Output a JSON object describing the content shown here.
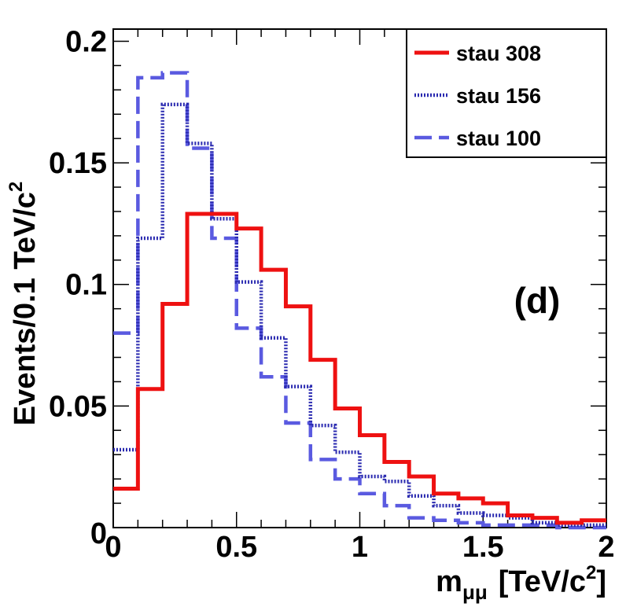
{
  "chart_data": {
    "type": "histogram-step",
    "panel_label": "(d)",
    "xlabel_main": "m",
    "xlabel_sub": "μμ",
    "xlabel_unit_prefix": "[TeV/c",
    "xlabel_unit_power": "2",
    "xlabel_unit_suffix": "]",
    "ylabel_main": "Events/0.1 TeV/c",
    "ylabel_power": "2",
    "xlim": [
      0,
      2
    ],
    "ylim": [
      0,
      0.205
    ],
    "x_ticks": [
      0,
      0.5,
      1,
      1.5,
      2
    ],
    "x_tick_labels": [
      "0",
      "0.5",
      "1",
      "1.5",
      "2"
    ],
    "y_ticks": [
      0,
      0.05,
      0.1,
      0.15,
      0.2
    ],
    "y_tick_labels": [
      "0",
      "0.05",
      "0.1",
      "0.15",
      "0.2"
    ],
    "bin_edges": [
      0,
      0.1,
      0.2,
      0.3,
      0.4,
      0.5,
      0.6,
      0.7,
      0.8,
      0.9,
      1.0,
      1.1,
      1.2,
      1.3,
      1.4,
      1.5,
      1.6,
      1.7,
      1.8,
      1.9,
      2.0
    ],
    "series": [
      {
        "name": "stau 308",
        "color": "#ee1111",
        "style": "solid",
        "values": [
          0.016,
          0.057,
          0.092,
          0.129,
          0.129,
          0.123,
          0.106,
          0.091,
          0.069,
          0.049,
          0.038,
          0.027,
          0.021,
          0.014,
          0.012,
          0.01,
          0.005,
          0.004,
          0.002,
          0.003
        ]
      },
      {
        "name": "stau 156",
        "color": "#2a2ab0",
        "style": "dotted",
        "values": [
          0.032,
          0.119,
          0.174,
          0.158,
          0.127,
          0.101,
          0.078,
          0.058,
          0.042,
          0.031,
          0.021,
          0.019,
          0.013,
          0.009,
          0.006,
          0.005,
          0.004,
          0.002,
          0.001,
          0.001
        ]
      },
      {
        "name": "stau 100",
        "color": "#5a5ae0",
        "style": "dashed",
        "values": [
          0.08,
          0.185,
          0.187,
          0.156,
          0.119,
          0.082,
          0.062,
          0.043,
          0.028,
          0.02,
          0.014,
          0.009,
          0.004,
          0.003,
          0.002,
          0.001,
          0.001,
          0.001,
          0.0,
          0.0
        ]
      }
    ]
  }
}
